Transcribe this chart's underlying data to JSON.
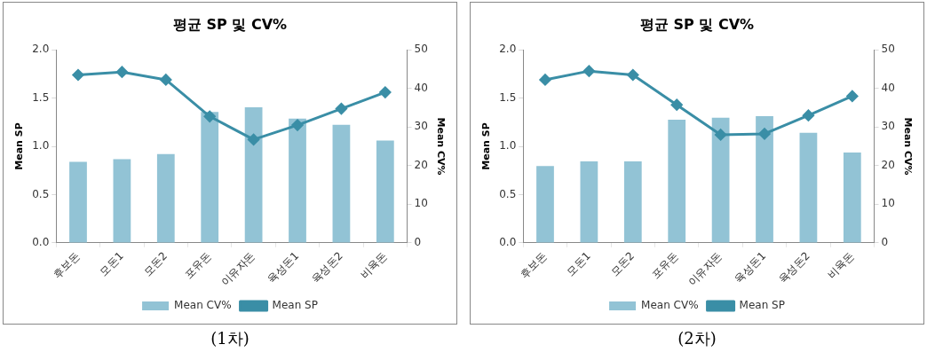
{
  "chart_data": [
    {
      "type": "bar",
      "title": "평균 SP 및 CV%",
      "ylabel": "Mean SP",
      "y2label": "Mean CV%",
      "categories": [
        "후보돈",
        "모돈1",
        "모돈2",
        "포유돈",
        "이유자돈",
        "육성돈1",
        "육성돈2",
        "비육돈"
      ],
      "series": [
        {
          "name": "Mean CV%",
          "axis": "y2",
          "color": "#92c3d5",
          "values": [
            21.0,
            21.7,
            23.0,
            33.9,
            35.1,
            32.2,
            30.6,
            26.5
          ]
        },
        {
          "name": "Mean SP",
          "type": "line",
          "axis": "y",
          "color": "#3a8ea6",
          "marker": "diamond",
          "values": [
            1.74,
            1.77,
            1.69,
            1.31,
            1.07,
            1.22,
            1.39,
            1.56
          ]
        }
      ],
      "ylim": [
        0,
        2
      ],
      "yticks": [
        {
          "value": 0,
          "label": "0.0"
        },
        {
          "value": 0.5,
          "label": "0.5"
        },
        {
          "value": 1,
          "label": "1.0"
        },
        {
          "value": 1.5,
          "label": "1.5"
        },
        {
          "value": 2,
          "label": "2.0"
        }
      ],
      "y2lim": [
        0,
        50
      ],
      "y2ticks": [
        0,
        10,
        20,
        30,
        40,
        50
      ],
      "grid": false,
      "legend": "bottom",
      "annotations": [
        "(1차)"
      ]
    },
    {
      "type": "bar",
      "title": "평균 SP 및 CV%",
      "ylabel": "Mean SP",
      "y2label": "Mean CV%",
      "categories": [
        "후보돈",
        "모돈1",
        "모돈2",
        "포유돈",
        "이유자돈",
        "육성돈1",
        "육성돈2",
        "비육돈"
      ],
      "series": [
        {
          "name": "Mean CV%",
          "axis": "y2",
          "color": "#92c3d5",
          "values": [
            19.9,
            21.1,
            21.1,
            31.9,
            32.4,
            32.8,
            28.5,
            23.4
          ]
        },
        {
          "name": "Mean SP",
          "type": "line",
          "axis": "y",
          "color": "#3a8ea6",
          "marker": "diamond",
          "values": [
            1.69,
            1.78,
            1.74,
            1.43,
            1.12,
            1.13,
            1.32,
            1.52
          ]
        }
      ],
      "ylim": [
        0,
        2
      ],
      "yticks": [
        {
          "value": 0,
          "label": "0.0"
        },
        {
          "value": 0.5,
          "label": "0.5"
        },
        {
          "value": 1,
          "label": "1.0"
        },
        {
          "value": 1.5,
          "label": "1.5"
        },
        {
          "value": 2,
          "label": "2.0"
        }
      ],
      "y2lim": [
        0,
        50
      ],
      "y2ticks": [
        0,
        10,
        20,
        30,
        40,
        50
      ],
      "grid": false,
      "legend": "bottom",
      "annotations": [
        "(2차)"
      ]
    }
  ]
}
